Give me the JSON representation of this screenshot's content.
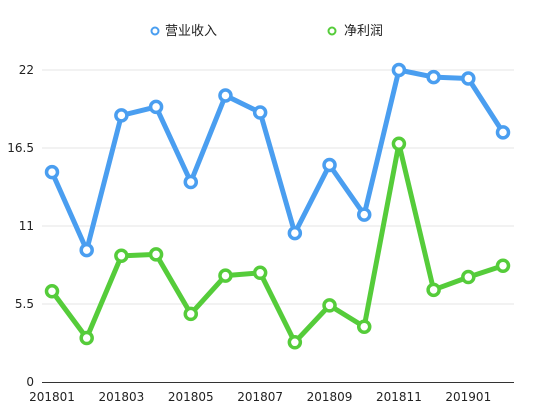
{
  "chart_data": {
    "type": "line",
    "title": "",
    "xlabel": "",
    "ylabel": "",
    "x": [
      "201801",
      "201802",
      "201803",
      "201804",
      "201805",
      "201806",
      "201807",
      "201808",
      "201809",
      "201810",
      "201811",
      "201812",
      "201901",
      "201902"
    ],
    "x_tick_labels": [
      "201801",
      "201803",
      "201805",
      "201807",
      "201809",
      "201811",
      "201901"
    ],
    "y_ticks": [
      "0",
      "5.5",
      "11",
      "16.5",
      "22"
    ],
    "ylim": [
      0,
      24.3
    ],
    "grid": true,
    "legend_position": "top-center",
    "series": [
      {
        "name": "营业收入",
        "color": "#4a9ef0",
        "values": [
          14.8,
          9.3,
          18.8,
          19.4,
          14.1,
          20.2,
          19.0,
          10.5,
          15.3,
          11.8,
          22.0,
          21.5,
          21.4,
          17.6
        ]
      },
      {
        "name": "净利润",
        "color": "#55cc3a",
        "values": [
          6.4,
          3.1,
          8.9,
          9.0,
          4.8,
          7.5,
          7.7,
          2.8,
          5.4,
          3.9,
          16.8,
          6.5,
          7.4,
          8.2
        ]
      }
    ]
  }
}
